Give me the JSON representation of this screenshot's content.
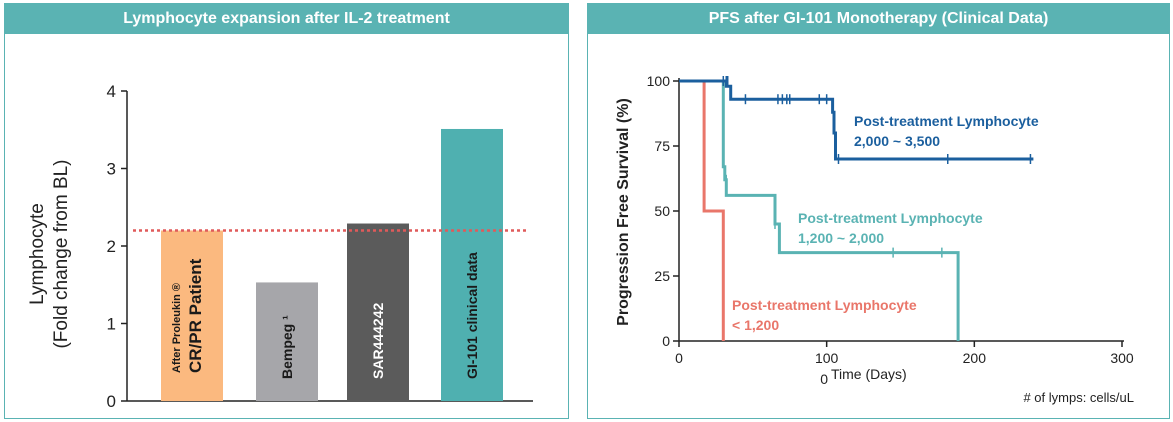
{
  "chart_data": [
    {
      "type": "bar",
      "title": "Lymphocyte expansion after IL-2 treatment",
      "ylabel_line1": "Lymphocyte",
      "ylabel_line2": "(Fold change from BL)",
      "ylim": [
        0,
        4
      ],
      "yticks": [
        "0",
        "1",
        "2",
        "3",
        "4"
      ],
      "reference_line": 2.2,
      "bars": [
        {
          "label_small": "After Proleukin ®",
          "label": "CR/PR Patient",
          "value": 2.2,
          "color": "#fbb97f",
          "text_color": "#1a1a1a"
        },
        {
          "label_small": "",
          "label": "Bempeg ¹",
          "value": 1.53,
          "color": "#a6a6aa",
          "text_color": "#1a1a1a"
        },
        {
          "label_small": "",
          "label": "SAR444242",
          "value": 2.29,
          "color": "#5b5b5b",
          "text_color": "#ffffff"
        },
        {
          "label_small": "",
          "label": "GI-101 clinical data",
          "value": 3.51,
          "color": "#4fb0b0",
          "text_color": "#1a1a1a"
        }
      ]
    },
    {
      "type": "line",
      "title": "PFS after GI-101 Monotherapy (Clinical Data)",
      "xlabel": "Time (Days)",
      "xlabel_prefix": "0",
      "ylabel": "Progression Free Survival (%)",
      "xlim": [
        0,
        300
      ],
      "ylim": [
        0,
        100
      ],
      "xticks": [
        "0",
        "100",
        "200",
        "300"
      ],
      "yticks": [
        "0",
        "25",
        "50",
        "75",
        "100"
      ],
      "footnote": "# of lymps: cells/uL",
      "series": [
        {
          "name": "Post-treatment Lymphocyte",
          "range": "2,000 ~ 3,500",
          "color": "#1b5f9e",
          "steps": [
            [
              0,
              100
            ],
            [
              32,
              100
            ],
            [
              32,
              98
            ],
            [
              35,
              98
            ],
            [
              35,
              93
            ],
            [
              104,
              93
            ],
            [
              104,
              88
            ],
            [
              105,
              88
            ],
            [
              105,
              80
            ],
            [
              106,
              80
            ],
            [
              106,
              70
            ],
            [
              240,
              70
            ]
          ],
          "censors": [
            [
              30,
              100
            ],
            [
              32,
              100
            ],
            [
              33,
              100
            ],
            [
              45,
              93
            ],
            [
              67,
              93
            ],
            [
              70,
              93
            ],
            [
              73,
              93
            ],
            [
              75,
              93
            ],
            [
              95,
              93
            ],
            [
              100,
              93
            ],
            [
              108,
              70
            ],
            [
              182,
              70
            ],
            [
              238,
              70
            ]
          ]
        },
        {
          "name": "Post-treatment Lymphocyte",
          "range": "1,200 ~ 2,000",
          "color": "#5ab3b3",
          "steps": [
            [
              0,
              100
            ],
            [
              30,
              100
            ],
            [
              30,
              67
            ],
            [
              31,
              67
            ],
            [
              31,
              62
            ],
            [
              32,
              62
            ],
            [
              32,
              56
            ],
            [
              65,
              56
            ],
            [
              65,
              45
            ],
            [
              68,
              45
            ],
            [
              68,
              34
            ],
            [
              189,
              34
            ],
            [
              189,
              0
            ]
          ],
          "censors": [
            [
              32,
              62
            ],
            [
              65,
              45
            ],
            [
              68,
              36
            ],
            [
              145,
              34
            ],
            [
              178,
              34
            ]
          ]
        },
        {
          "name": "Post-treatment Lymphocyte",
          "range": "< 1,200",
          "color": "#e9766a",
          "steps": [
            [
              0,
              100
            ],
            [
              17,
              100
            ],
            [
              17,
              50
            ],
            [
              30,
              50
            ],
            [
              30,
              0
            ]
          ],
          "censors": []
        }
      ]
    }
  ]
}
